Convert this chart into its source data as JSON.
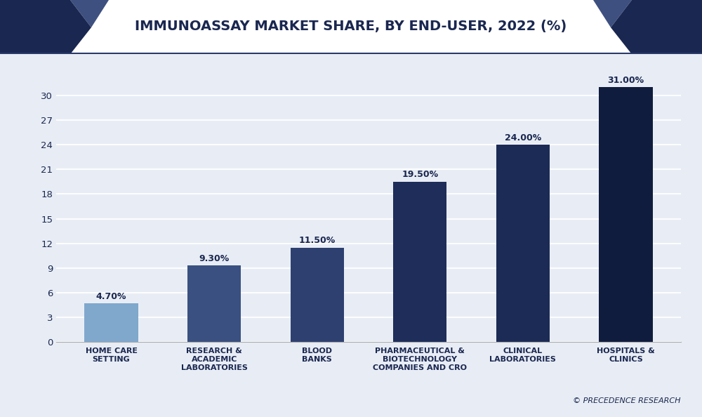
{
  "title": "IMMUNOASSAY MARKET SHARE, BY END-USER, 2022 (%)",
  "categories": [
    "HOME CARE\nSETTING",
    "RESEARCH &\nACADEMIC\nLABORATORIES",
    "BLOOD\nBANKS",
    "PHARMACEUTICAL &\nBIOTECHNOLOGY\nCOMPANIES AND CRO",
    "CLINICAL\nLABORATORIES",
    "HOSPITALS &\nCLINICS"
  ],
  "values": [
    4.7,
    9.3,
    11.5,
    19.5,
    24.0,
    31.0
  ],
  "bar_colors": [
    "#7fa8cc",
    "#3a5080",
    "#2d4070",
    "#1e2d5a",
    "#1c2a56",
    "#101c3d"
  ],
  "value_labels": [
    "4.70%",
    "9.30%",
    "11.50%",
    "19.50%",
    "24.00%",
    "31.00%"
  ],
  "ylim": [
    0,
    33
  ],
  "yticks": [
    0,
    3,
    6,
    9,
    12,
    15,
    18,
    21,
    24,
    27,
    30
  ],
  "chart_bg_color": "#e8edf5",
  "plot_bg_color": "#e8edf5",
  "title_color": "#1a2750",
  "title_fontsize": 14,
  "label_fontsize": 8,
  "value_fontsize": 9,
  "watermark": "© PRECEDENCE RESEARCH",
  "header_dark_color": "#1a2750",
  "header_mid_color": "#3d5080",
  "header_white": "#ffffff",
  "border_color": "#2a3a6a"
}
